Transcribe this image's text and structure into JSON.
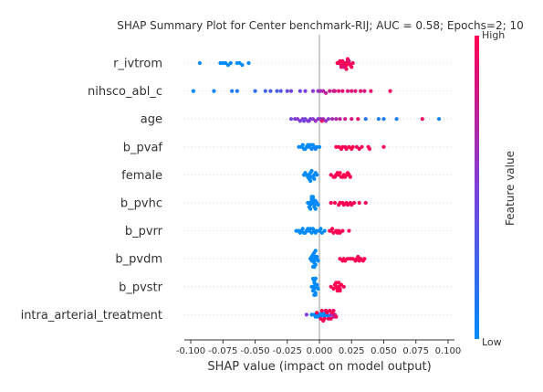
{
  "chart_data": {
    "type": "scatter",
    "title": "SHAP Summary Plot for Center benchmark-RIJ; AUC = 0.58; Epochs=2; 10",
    "xlabel": "SHAP value (impact on model output)",
    "xlim": [
      -0.105,
      0.105
    ],
    "xticks": [
      "-0.100",
      "-0.075",
      "-0.050",
      "-0.025",
      "0.000",
      "0.025",
      "0.050",
      "0.075",
      "0.100"
    ],
    "xtick_values": [
      -0.1,
      -0.075,
      -0.05,
      -0.025,
      0.0,
      0.025,
      0.05,
      0.075,
      0.1
    ],
    "colorbar": {
      "label": "Feature value",
      "high": "High",
      "low": "Low",
      "low_color": "#008afb",
      "high_color": "#ff0052"
    },
    "grid": "dotted horizontal per feature",
    "features": [
      {
        "name": "r_ivtrom",
        "points": [
          [
            -0.093,
            0.0
          ],
          [
            -0.077,
            0.0
          ],
          [
            -0.075,
            0.0
          ],
          [
            -0.073,
            0.0
          ],
          [
            -0.071,
            0.0
          ],
          [
            -0.069,
            0.0
          ],
          [
            -0.064,
            0.0
          ],
          [
            -0.062,
            0.0
          ],
          [
            -0.06,
            0.0
          ],
          [
            -0.055,
            0.0
          ],
          [
            0.015,
            0.95
          ],
          [
            0.017,
            1.0
          ],
          [
            0.018,
            0.9
          ],
          [
            0.019,
            1.0
          ],
          [
            0.02,
            0.95
          ],
          [
            0.021,
            1.0
          ],
          [
            0.022,
            0.9
          ],
          [
            0.023,
            1.0
          ],
          [
            0.024,
            0.95
          ],
          [
            0.016,
            1.0
          ],
          [
            0.018,
            1.0
          ],
          [
            0.02,
            1.0
          ],
          [
            0.022,
            1.0
          ],
          [
            0.019,
            0.85
          ],
          [
            0.021,
            0.95
          ],
          [
            0.017,
            0.9
          ],
          [
            0.023,
            0.85
          ],
          [
            0.025,
            1.0
          ],
          [
            0.014,
            1.0
          ],
          [
            0.026,
            0.95
          ]
        ]
      },
      {
        "name": "nihsco_abl_c",
        "points": [
          [
            -0.098,
            0.0
          ],
          [
            -0.082,
            0.05
          ],
          [
            -0.068,
            0.1
          ],
          [
            -0.064,
            0.15
          ],
          [
            -0.05,
            0.2
          ],
          [
            -0.042,
            0.25
          ],
          [
            -0.038,
            0.3
          ],
          [
            -0.033,
            0.3
          ],
          [
            -0.025,
            0.4
          ],
          [
            -0.022,
            0.45
          ],
          [
            -0.015,
            0.45
          ],
          [
            -0.011,
            0.5
          ],
          [
            -0.005,
            0.55
          ],
          [
            -0.001,
            0.6
          ],
          [
            0.001,
            0.65
          ],
          [
            0.003,
            0.7
          ],
          [
            0.005,
            0.75
          ],
          [
            0.008,
            0.8
          ],
          [
            0.011,
            0.85
          ],
          [
            0.015,
            0.9
          ],
          [
            0.018,
            0.9
          ],
          [
            0.022,
            0.85
          ],
          [
            0.025,
            0.9
          ],
          [
            0.028,
            0.85
          ],
          [
            0.032,
            0.9
          ],
          [
            0.035,
            0.85
          ],
          [
            0.04,
            0.9
          ],
          [
            0.055,
            0.95
          ],
          [
            -0.03,
            0.35
          ],
          [
            0.012,
            0.8
          ]
        ]
      },
      {
        "name": "age",
        "points": [
          [
            -0.022,
            0.45
          ],
          [
            -0.019,
            0.5
          ],
          [
            -0.017,
            0.55
          ],
          [
            -0.015,
            0.5
          ],
          [
            -0.013,
            0.55
          ],
          [
            -0.011,
            0.45
          ],
          [
            -0.009,
            0.6
          ],
          [
            -0.007,
            0.5
          ],
          [
            -0.005,
            0.55
          ],
          [
            -0.003,
            0.6
          ],
          [
            -0.001,
            0.55
          ],
          [
            0.001,
            0.6
          ],
          [
            0.003,
            0.65
          ],
          [
            0.005,
            0.6
          ],
          [
            0.007,
            0.55
          ],
          [
            0.01,
            0.65
          ],
          [
            0.013,
            0.7
          ],
          [
            0.016,
            0.75
          ],
          [
            0.02,
            0.8
          ],
          [
            0.025,
            0.85
          ],
          [
            0.03,
            0.9
          ],
          [
            0.036,
            0.15
          ],
          [
            0.046,
            0.1
          ],
          [
            0.05,
            0.1
          ],
          [
            0.06,
            0.1
          ],
          [
            0.08,
            0.95
          ],
          [
            0.093,
            0.05
          ],
          [
            -0.008,
            0.5
          ],
          [
            -0.012,
            0.45
          ],
          [
            0.002,
            0.9
          ]
        ]
      },
      {
        "name": "b_pvaf",
        "points": [
          [
            -0.016,
            0.0
          ],
          [
            -0.014,
            0.0
          ],
          [
            -0.012,
            0.05
          ],
          [
            -0.01,
            0.0
          ],
          [
            -0.008,
            0.0
          ],
          [
            -0.006,
            0.05
          ],
          [
            -0.004,
            0.0
          ],
          [
            -0.002,
            0.0
          ],
          [
            0.0,
            0.0
          ],
          [
            -0.011,
            0.0
          ],
          [
            -0.007,
            0.0
          ],
          [
            -0.003,
            0.05
          ],
          [
            -0.009,
            0.0
          ],
          [
            -0.005,
            0.0
          ],
          [
            -0.013,
            0.0
          ],
          [
            0.015,
            1.0
          ],
          [
            0.018,
            1.0
          ],
          [
            0.02,
            0.95
          ],
          [
            0.023,
            1.0
          ],
          [
            0.026,
            1.0
          ],
          [
            0.029,
            0.95
          ],
          [
            0.033,
            1.0
          ],
          [
            0.038,
            1.0
          ],
          [
            0.05,
            1.0
          ],
          [
            0.013,
            1.0
          ],
          [
            0.021,
            1.0
          ],
          [
            0.025,
            1.0
          ],
          [
            0.031,
            1.0
          ],
          [
            0.017,
            1.0
          ],
          [
            0.039,
            1.0
          ]
        ]
      },
      {
        "name": "female",
        "points": [
          [
            -0.012,
            0.0
          ],
          [
            -0.01,
            0.0
          ],
          [
            -0.008,
            0.0
          ],
          [
            -0.006,
            0.0
          ],
          [
            -0.004,
            0.0
          ],
          [
            -0.002,
            0.0
          ],
          [
            -0.009,
            0.0
          ],
          [
            -0.007,
            0.0
          ],
          [
            -0.005,
            0.0
          ],
          [
            -0.011,
            0.0
          ],
          [
            -0.003,
            0.0
          ],
          [
            -0.008,
            0.0
          ],
          [
            -0.006,
            0.0
          ],
          [
            -0.004,
            0.0
          ],
          [
            -0.007,
            0.0
          ],
          [
            0.009,
            1.0
          ],
          [
            0.011,
            1.0
          ],
          [
            0.013,
            1.0
          ],
          [
            0.015,
            1.0
          ],
          [
            0.017,
            1.0
          ],
          [
            0.019,
            1.0
          ],
          [
            0.021,
            1.0
          ],
          [
            0.023,
            1.0
          ],
          [
            0.024,
            1.0
          ],
          [
            0.012,
            1.0
          ],
          [
            0.014,
            1.0
          ],
          [
            0.016,
            1.0
          ],
          [
            0.018,
            1.0
          ],
          [
            0.02,
            1.0
          ],
          [
            0.022,
            1.0
          ]
        ]
      },
      {
        "name": "b_pvhc",
        "points": [
          [
            -0.009,
            0.0
          ],
          [
            -0.008,
            0.0
          ],
          [
            -0.007,
            0.0
          ],
          [
            -0.006,
            0.0
          ],
          [
            -0.005,
            0.0
          ],
          [
            -0.004,
            0.0
          ],
          [
            -0.003,
            0.0
          ],
          [
            -0.002,
            0.0
          ],
          [
            -0.001,
            0.0
          ],
          [
            -0.008,
            0.0
          ],
          [
            -0.006,
            0.0
          ],
          [
            -0.004,
            0.0
          ],
          [
            -0.007,
            0.0
          ],
          [
            -0.005,
            0.0
          ],
          [
            -0.003,
            0.0
          ],
          [
            -0.006,
            0.0
          ],
          [
            -0.005,
            0.0
          ],
          [
            0.009,
            1.0
          ],
          [
            0.012,
            1.0
          ],
          [
            0.016,
            1.0
          ],
          [
            0.018,
            1.0
          ],
          [
            0.021,
            1.0
          ],
          [
            0.024,
            1.0
          ],
          [
            0.027,
            1.0
          ],
          [
            0.031,
            1.0
          ],
          [
            0.036,
            1.0
          ],
          [
            0.019,
            1.0
          ],
          [
            0.022,
            1.0
          ],
          [
            0.025,
            1.0
          ],
          [
            0.015,
            1.0
          ]
        ]
      },
      {
        "name": "b_pvrr",
        "points": [
          [
            -0.018,
            0.0
          ],
          [
            -0.016,
            0.0
          ],
          [
            -0.014,
            0.0
          ],
          [
            -0.012,
            0.0
          ],
          [
            -0.01,
            0.0
          ],
          [
            -0.008,
            0.0
          ],
          [
            -0.006,
            0.0
          ],
          [
            -0.004,
            0.0
          ],
          [
            -0.002,
            0.0
          ],
          [
            0.0,
            0.0
          ],
          [
            0.002,
            0.0
          ],
          [
            0.004,
            0.0
          ],
          [
            -0.015,
            0.0
          ],
          [
            -0.011,
            0.0
          ],
          [
            -0.007,
            0.0
          ],
          [
            -0.003,
            0.0
          ],
          [
            0.001,
            0.0
          ],
          [
            -0.009,
            0.0
          ],
          [
            -0.005,
            0.0
          ],
          [
            -0.013,
            0.0
          ],
          [
            0.009,
            1.0
          ],
          [
            0.011,
            1.0
          ],
          [
            0.013,
            1.0
          ],
          [
            0.015,
            1.0
          ],
          [
            0.018,
            1.0
          ],
          [
            0.023,
            1.0
          ],
          [
            0.01,
            1.0
          ],
          [
            0.014,
            1.0
          ],
          [
            0.008,
            1.0
          ],
          [
            0.016,
            1.0
          ]
        ]
      },
      {
        "name": "b_pvdm",
        "points": [
          [
            -0.007,
            0.0
          ],
          [
            -0.006,
            0.0
          ],
          [
            -0.005,
            0.0
          ],
          [
            -0.004,
            0.0
          ],
          [
            -0.003,
            0.0
          ],
          [
            -0.002,
            0.0
          ],
          [
            -0.001,
            0.0
          ],
          [
            -0.006,
            0.0
          ],
          [
            -0.004,
            0.0
          ],
          [
            -0.002,
            0.0
          ],
          [
            -0.005,
            0.0
          ],
          [
            -0.003,
            0.0
          ],
          [
            -0.004,
            0.0
          ],
          [
            -0.005,
            0.0
          ],
          [
            -0.003,
            0.0
          ],
          [
            -0.004,
            0.0
          ],
          [
            0.016,
            1.0
          ],
          [
            0.019,
            1.0
          ],
          [
            0.022,
            1.0
          ],
          [
            0.026,
            1.0
          ],
          [
            0.029,
            1.0
          ],
          [
            0.032,
            1.0
          ],
          [
            0.035,
            1.0
          ],
          [
            0.018,
            1.0
          ],
          [
            0.028,
            1.0
          ],
          [
            0.031,
            1.0
          ],
          [
            0.024,
            1.0
          ],
          [
            0.034,
            1.0
          ],
          [
            0.02,
            1.0
          ],
          [
            0.03,
            1.0
          ]
        ]
      },
      {
        "name": "b_pvstr",
        "points": [
          [
            -0.006,
            0.0
          ],
          [
            -0.005,
            0.0
          ],
          [
            -0.004,
            0.0
          ],
          [
            -0.003,
            0.0
          ],
          [
            -0.002,
            0.0
          ],
          [
            -0.001,
            0.0
          ],
          [
            -0.005,
            0.0
          ],
          [
            -0.004,
            0.0
          ],
          [
            -0.003,
            0.0
          ],
          [
            -0.002,
            0.0
          ],
          [
            -0.004,
            0.0
          ],
          [
            -0.003,
            0.0
          ],
          [
            -0.005,
            0.0
          ],
          [
            -0.004,
            0.0
          ],
          [
            -0.003,
            0.0
          ],
          [
            -0.004,
            0.0
          ],
          [
            -0.003,
            0.0
          ],
          [
            0.009,
            1.0
          ],
          [
            0.011,
            1.0
          ],
          [
            0.013,
            1.0
          ],
          [
            0.014,
            1.0
          ],
          [
            0.015,
            1.0
          ],
          [
            0.016,
            1.0
          ],
          [
            0.017,
            1.0
          ],
          [
            0.019,
            1.0
          ],
          [
            0.012,
            1.0
          ],
          [
            0.014,
            1.0
          ],
          [
            0.016,
            1.0
          ],
          [
            0.013,
            1.0
          ],
          [
            0.015,
            1.0
          ]
        ]
      },
      {
        "name": "intra_arterial_treatment",
        "points": [
          [
            -0.01,
            0.5
          ],
          [
            -0.006,
            0.0
          ],
          [
            -0.004,
            0.0
          ],
          [
            -0.003,
            0.0
          ],
          [
            -0.002,
            0.0
          ],
          [
            -0.001,
            0.0
          ],
          [
            0.0,
            0.0
          ],
          [
            0.001,
            0.0
          ],
          [
            0.002,
            0.0
          ],
          [
            0.003,
            0.0
          ],
          [
            0.004,
            0.0
          ],
          [
            0.005,
            0.0
          ],
          [
            0.006,
            0.0
          ],
          [
            0.007,
            0.0
          ],
          [
            0.009,
            0.6
          ],
          [
            0.011,
            0.7
          ],
          [
            0.012,
            0.8
          ],
          [
            0.004,
            1.0
          ],
          [
            0.005,
            1.0
          ],
          [
            0.006,
            1.0
          ],
          [
            0.007,
            1.0
          ],
          [
            0.008,
            1.0
          ],
          [
            0.001,
            1.0
          ],
          [
            0.002,
            1.0
          ],
          [
            0.003,
            1.0
          ],
          [
            0.01,
            1.0
          ],
          [
            -0.002,
            1.0
          ],
          [
            0.009,
            1.0
          ],
          [
            0.011,
            1.0
          ],
          [
            0.013,
            1.0
          ]
        ]
      }
    ]
  }
}
